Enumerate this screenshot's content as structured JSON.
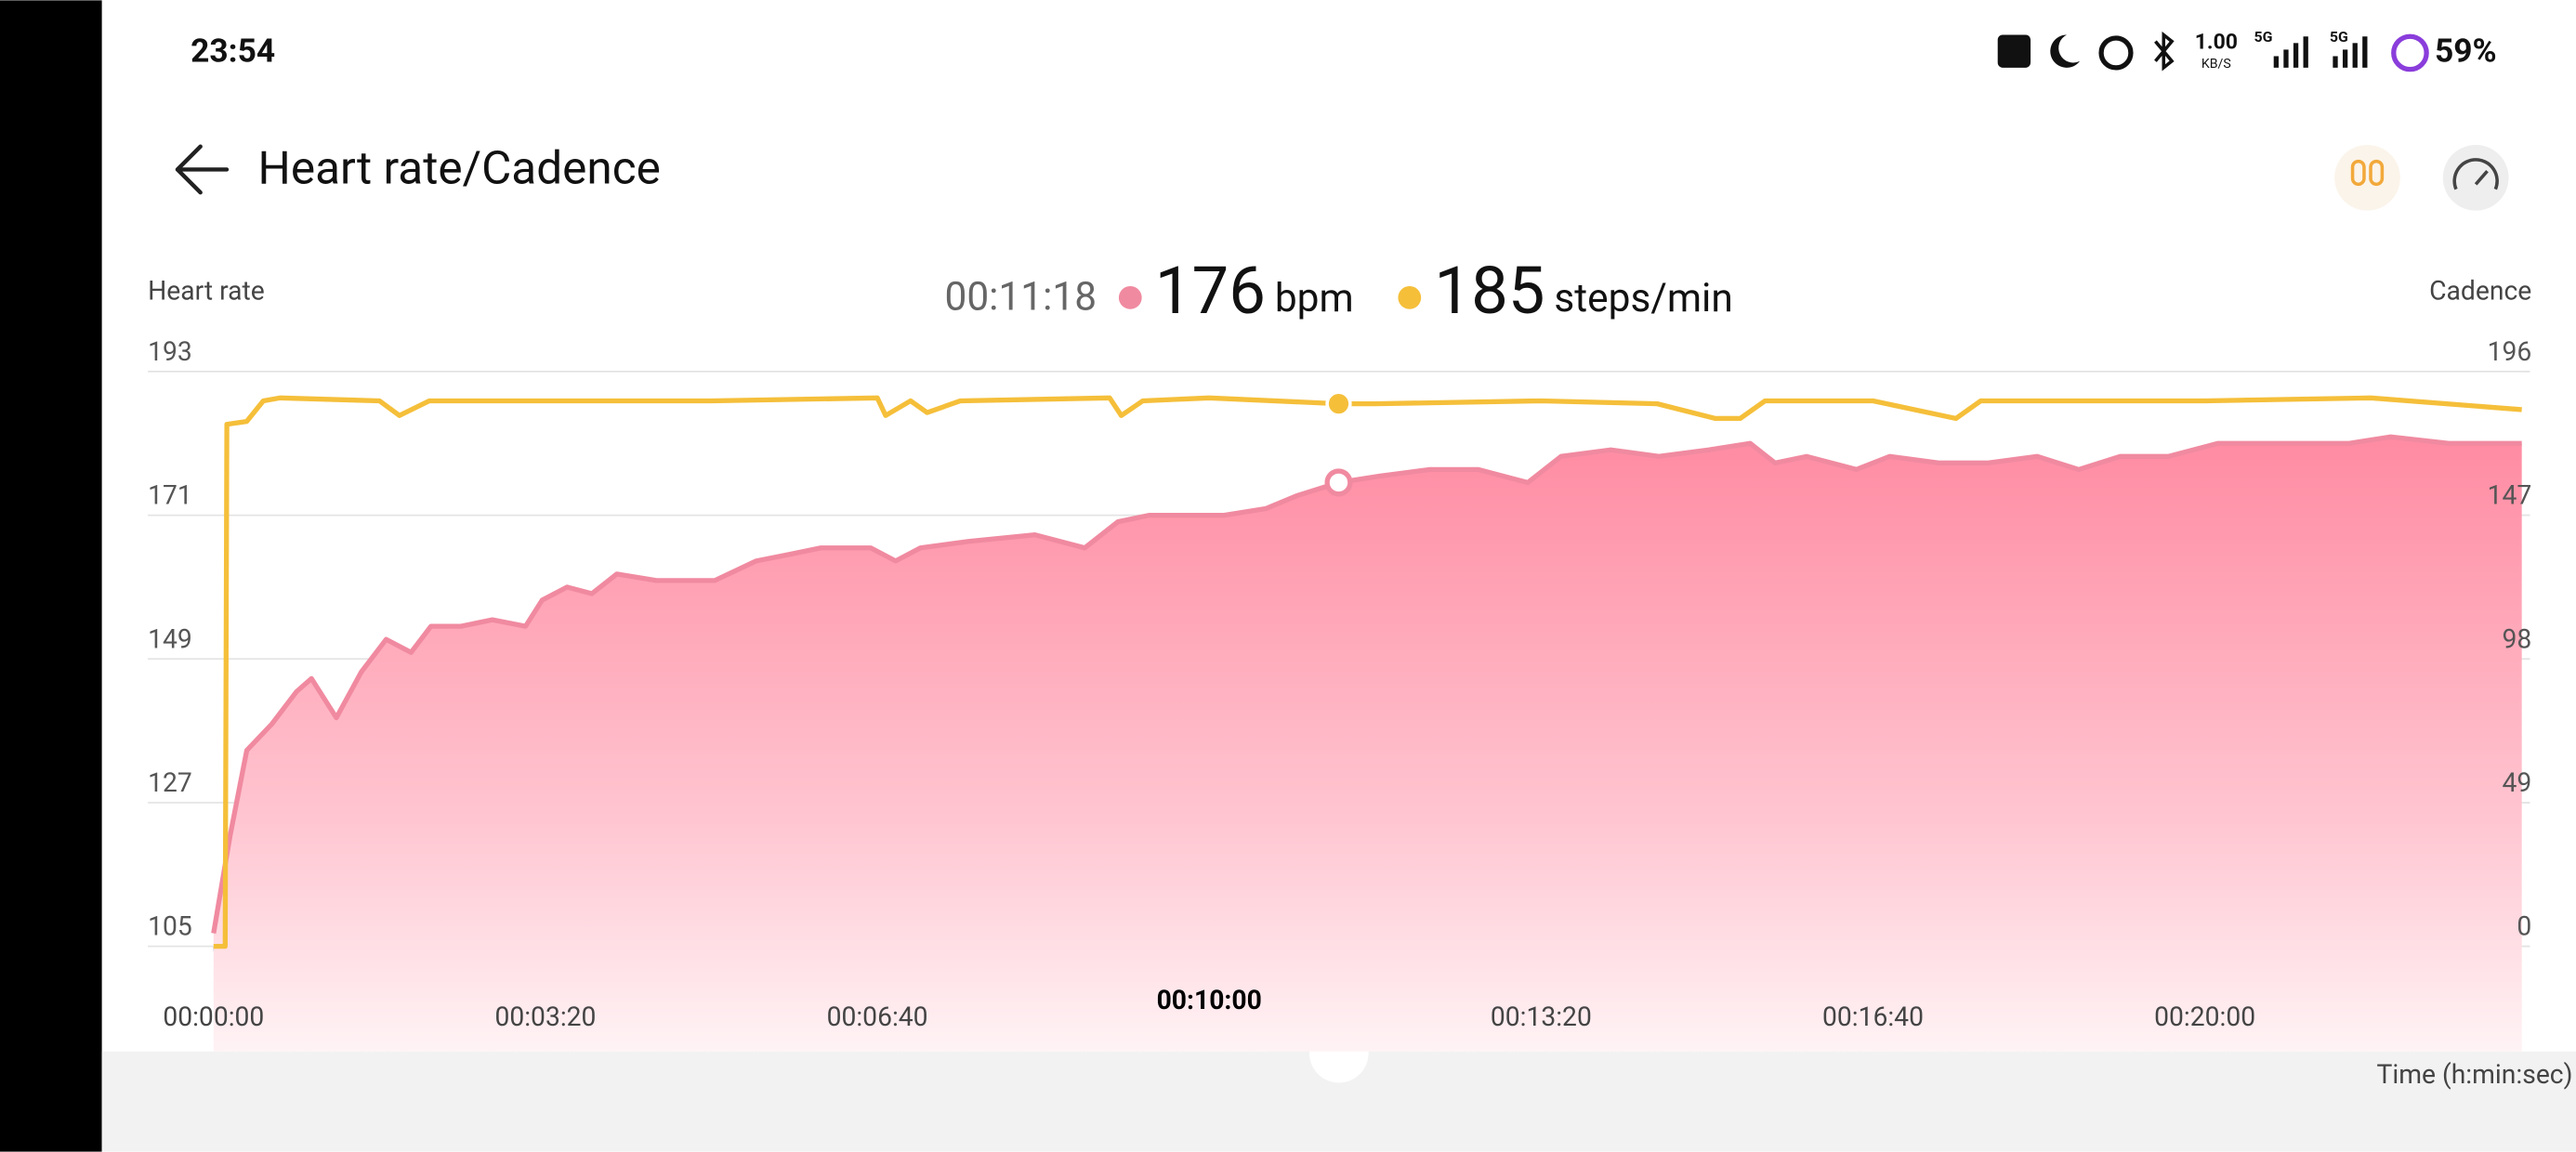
{
  "status_bar": {
    "time": "23:54",
    "speed": "1.00",
    "speed_unit": "KB/S",
    "network_1": "5G",
    "network_2": "5G",
    "battery": "59%"
  },
  "header": {
    "title": "Heart rate/Cadence"
  },
  "chart_data": {
    "type": "line",
    "y_label": "Heart rate",
    "y2_label": "Cadence",
    "x_label": "Time (h:min:sec)",
    "readout": {
      "time": "00:11:18",
      "heart_rate": 176,
      "heart_rate_unit": "bpm",
      "cadence": 185,
      "cadence_unit": "steps/min"
    },
    "cursor_x": 678,
    "xlim": [
      0,
      1391
    ],
    "xticks": [
      {
        "value": 0,
        "label": "00:00:00"
      },
      {
        "value": 200,
        "label": "00:03:20"
      },
      {
        "value": 400,
        "label": "00:06:40"
      },
      {
        "value": 600,
        "label": "00:10:00"
      },
      {
        "value": 800,
        "label": "00:13:20"
      },
      {
        "value": 1000,
        "label": "00:16:40"
      },
      {
        "value": 1200,
        "label": "00:20:00"
      }
    ],
    "ylim": [
      105,
      193
    ],
    "yticks": [
      105,
      127,
      149,
      171,
      193
    ],
    "y2lim": [
      0,
      196
    ],
    "y2ticks": [
      0,
      49,
      98,
      147,
      196
    ],
    "grid": true,
    "series": [
      {
        "name": "Heart rate",
        "color": "#f08aa0",
        "area": true,
        "x": [
          0,
          10,
          20,
          35,
          50,
          59,
          74,
          89,
          104,
          119,
          131,
          149,
          168,
          188,
          198,
          213,
          228,
          243,
          267,
          287,
          302,
          327,
          347,
          366,
          396,
          411,
          426,
          455,
          495,
          525,
          545,
          564,
          584,
          609,
          634,
          653,
          678,
          703,
          733,
          762,
          792,
          812,
          842,
          871,
          901,
          926,
          941,
          960,
          990,
          1010,
          1040,
          1069,
          1099,
          1124,
          1149,
          1178,
          1208,
          1238,
          1267,
          1287,
          1312,
          1347,
          1391
        ],
        "values": [
          107,
          122,
          135,
          139,
          144,
          146,
          140,
          147,
          152,
          150,
          154,
          154,
          155,
          154,
          158,
          160,
          159,
          162,
          161,
          161,
          161,
          164,
          165,
          166,
          166,
          164,
          166,
          167,
          168,
          166,
          170,
          171,
          171,
          171,
          172,
          174,
          176,
          177,
          178,
          178,
          176,
          180,
          181,
          180,
          181,
          182,
          179,
          180,
          178,
          180,
          179,
          179,
          180,
          178,
          180,
          180,
          182,
          182,
          182,
          182,
          183,
          182,
          182
        ]
      },
      {
        "name": "Cadence",
        "color": "#f5bf3a",
        "axis": "y2",
        "area": false,
        "x": [
          0,
          7,
          8,
          20,
          30,
          40,
          100,
          112,
          130,
          200,
          300,
          400,
          405,
          420,
          430,
          450,
          540,
          547,
          560,
          600,
          678,
          700,
          800,
          870,
          905,
          920,
          935,
          960,
          1000,
          1050,
          1065,
          1200,
          1300,
          1391
        ],
        "values": [
          0,
          0,
          178,
          179,
          186,
          187,
          186,
          181,
          186,
          186,
          186,
          187,
          181,
          186,
          182,
          186,
          187,
          181,
          186,
          187,
          185,
          185,
          186,
          185,
          180,
          180,
          186,
          186,
          186,
          180,
          186,
          186,
          187,
          183
        ]
      }
    ]
  }
}
